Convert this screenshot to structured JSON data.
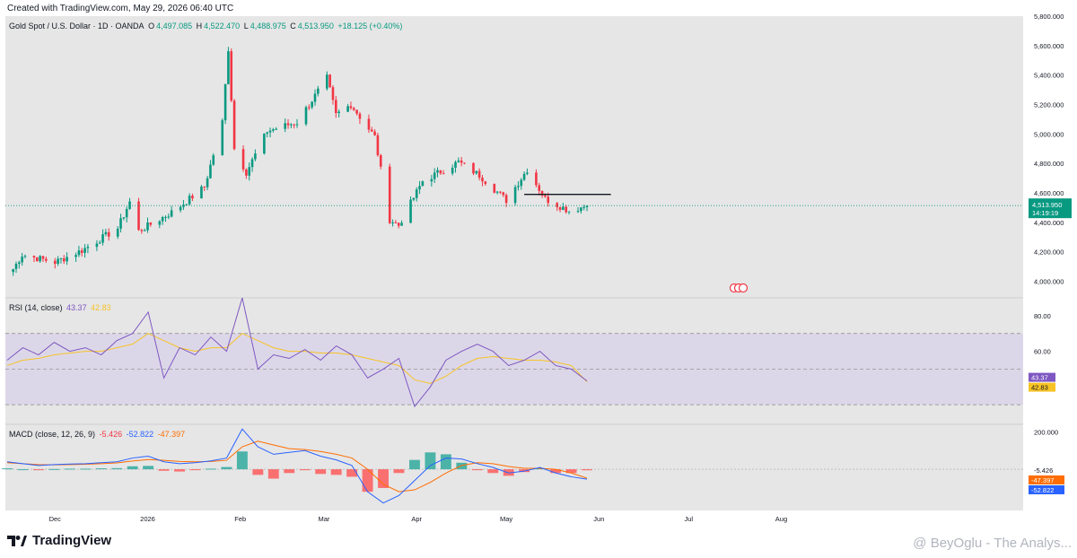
{
  "header": {
    "created_text": "Created with TradingView.com, May 29, 2026 06:40 UTC"
  },
  "legend": {
    "symbol": "Gold Spot / U.S. Dollar · 1D · OANDA",
    "o_label": "O",
    "o_value": "4,497.085",
    "h_label": "H",
    "h_value": "4,522.470",
    "l_label": "L",
    "l_value": "4,488.975",
    "c_label": "C",
    "c_value": "4,513.950",
    "change": "+18.125 (+0.40%)"
  },
  "rsi_legend": {
    "name": "RSI (14, close)",
    "value": "43.37",
    "ma_value": "42.83"
  },
  "macd_legend": {
    "name": "MACD (close, 12, 26, 9)",
    "hist_value": "-5.426",
    "macd_value": "-52.822",
    "signal_value": "-47.397"
  },
  "price_axis": {
    "ticks": [
      "5,800.000",
      "5,600.000",
      "5,400.000",
      "5,200.000",
      "5,000.000",
      "4,800.000",
      "4,600.000",
      "4,400.000",
      "4,200.000",
      "4,000.000"
    ],
    "last_price": "4,513.950",
    "countdown": "14:19:19"
  },
  "rsi_axis": {
    "ticks": [
      "80.00",
      "60.00"
    ]
  },
  "macd_axis": {
    "ticks": [
      "200.000"
    ],
    "hist_label": "-5.426",
    "signal_label": "-47.397",
    "macd_label": "-52.822"
  },
  "time_axis": {
    "labels": [
      "Dec",
      "2026",
      "Feb",
      "Mar",
      "Apr",
      "May",
      "Jun",
      "Jul",
      "Aug"
    ]
  },
  "footer": {
    "brand": "TradingView",
    "watermark": "@ BeyOglu - The Analys..."
  },
  "colors": {
    "up": "#089981",
    "down": "#f23645",
    "rsi_line": "#7e57c2",
    "rsi_ma": "#f7c325",
    "macd_line": "#2962ff",
    "signal_line": "#ff6d00",
    "hist_up": "#26a69a",
    "hist_down": "#ff5252",
    "background": "#e6e6e6"
  },
  "chart_data": [
    {
      "type": "candlestick",
      "title": "Gold Spot / U.S. Dollar · 1D · OANDA",
      "x_range": [
        "2025-11-15",
        "2026-08-15"
      ],
      "ylim": [
        3900,
        5800
      ],
      "horizontal_line": 4590,
      "last_price": 4513.95,
      "ohlc_anchors": [
        {
          "date": "2025-11-15",
          "close": 4020
        },
        {
          "date": "2025-11-20",
          "close": 4180
        },
        {
          "date": "2025-12-01",
          "close": 4130
        },
        {
          "date": "2025-12-10",
          "close": 4210
        },
        {
          "date": "2025-12-22",
          "close": 4360
        },
        {
          "date": "2025-12-26",
          "close": 4540
        },
        {
          "date": "2025-12-29",
          "close": 4340
        },
        {
          "date": "2026-01-10",
          "close": 4480
        },
        {
          "date": "2026-01-20",
          "close": 4640
        },
        {
          "date": "2026-01-26",
          "close": 5080
        },
        {
          "date": "2026-01-28",
          "close": 5580
        },
        {
          "date": "2026-01-30",
          "close": 4900
        },
        {
          "date": "2026-02-03",
          "close": 4740
        },
        {
          "date": "2026-02-10",
          "close": 5020
        },
        {
          "date": "2026-02-20",
          "close": 5080
        },
        {
          "date": "2026-03-02",
          "close": 5380
        },
        {
          "date": "2026-03-05",
          "close": 5130
        },
        {
          "date": "2026-03-10",
          "close": 5200
        },
        {
          "date": "2026-03-18",
          "close": 4980
        },
        {
          "date": "2026-03-23",
          "close": 4420
        },
        {
          "date": "2026-03-26",
          "close": 4380
        },
        {
          "date": "2026-04-03",
          "close": 4680
        },
        {
          "date": "2026-04-15",
          "close": 4810
        },
        {
          "date": "2026-04-22",
          "close": 4720
        },
        {
          "date": "2026-05-01",
          "close": 4550
        },
        {
          "date": "2026-05-08",
          "close": 4760
        },
        {
          "date": "2026-05-14",
          "close": 4560
        },
        {
          "date": "2026-05-22",
          "close": 4480
        },
        {
          "date": "2026-05-28",
          "close": 4514
        }
      ]
    },
    {
      "type": "line",
      "title": "RSI (14, close)",
      "ylim": [
        20,
        90
      ],
      "bands": [
        70,
        50,
        30
      ],
      "series": [
        {
          "name": "RSI",
          "values": [
            55,
            62,
            58,
            65,
            60,
            62,
            58,
            66,
            70,
            82,
            45,
            62,
            58,
            68,
            60,
            90,
            50,
            58,
            56,
            61,
            55,
            63,
            58,
            45,
            50,
            56,
            29,
            40,
            55,
            60,
            64,
            60,
            52,
            55,
            60,
            52,
            50,
            43.37
          ]
        },
        {
          "name": "RSI MA",
          "values": [
            52,
            55,
            56,
            58,
            59,
            60,
            60,
            62,
            64,
            70,
            66,
            62,
            60,
            62,
            62,
            70,
            66,
            62,
            60,
            60,
            59,
            59,
            58,
            56,
            54,
            52,
            44,
            42,
            46,
            52,
            56,
            57,
            56,
            55,
            55,
            54,
            52,
            42.83
          ]
        }
      ]
    },
    {
      "type": "line",
      "title": "MACD (close, 12, 26, 9)",
      "series": [
        {
          "name": "MACD",
          "values": [
            40,
            30,
            20,
            25,
            28,
            30,
            35,
            40,
            60,
            70,
            40,
            30,
            35,
            45,
            60,
            215,
            120,
            80,
            90,
            100,
            70,
            50,
            20,
            -120,
            -180,
            -140,
            -60,
            20,
            60,
            55,
            30,
            10,
            -20,
            -10,
            10,
            -20,
            -40,
            -52.822
          ]
        },
        {
          "name": "Signal",
          "values": [
            35,
            30,
            25,
            24,
            25,
            27,
            30,
            34,
            44,
            52,
            48,
            42,
            40,
            42,
            48,
            120,
            150,
            130,
            110,
            105,
            95,
            80,
            60,
            0,
            -80,
            -120,
            -110,
            -70,
            -20,
            20,
            35,
            30,
            15,
            5,
            5,
            0,
            -20,
            -47.397
          ]
        },
        {
          "name": "Histogram",
          "values": [
            5,
            0,
            -5,
            1,
            3,
            3,
            5,
            6,
            16,
            18,
            -8,
            -12,
            -5,
            3,
            12,
            95,
            -30,
            -50,
            -20,
            -5,
            -25,
            -30,
            -40,
            -120,
            -100,
            -20,
            50,
            90,
            80,
            35,
            -5,
            -20,
            -35,
            -15,
            5,
            -20,
            -20,
            -5.426
          ]
        }
      ]
    }
  ]
}
